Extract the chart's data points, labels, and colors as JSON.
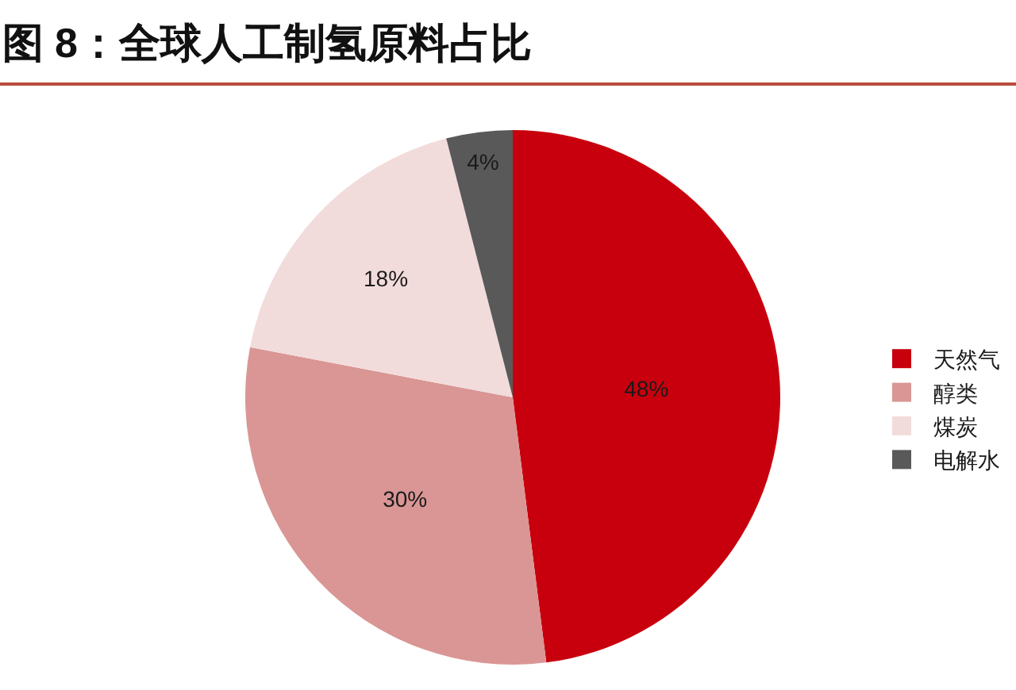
{
  "chart_data": {
    "type": "pie",
    "title": "图 8：全球人工制氢原料占比",
    "categories": [
      "天然气",
      "醇类",
      "煤炭",
      "电解水"
    ],
    "values": [
      48,
      30,
      18,
      4
    ],
    "colors": [
      "#c8000e",
      "#d99694",
      "#f2dcdb",
      "#595959"
    ],
    "value_labels": [
      "48%",
      "30%",
      "18%",
      "4%"
    ],
    "legend": "right"
  }
}
